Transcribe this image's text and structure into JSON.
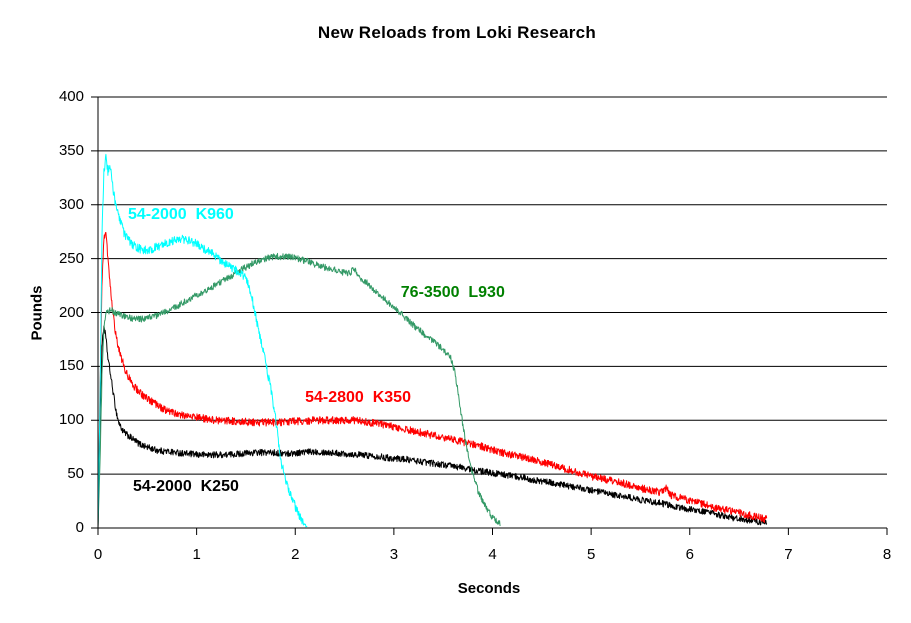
{
  "chart_data": {
    "type": "line",
    "title": "New Reloads from Loki Research",
    "xlabel": "Seconds",
    "ylabel": "Pounds",
    "xlim": [
      0,
      8
    ],
    "ylim": [
      0,
      400
    ],
    "xticks": [
      0,
      1,
      2,
      3,
      4,
      5,
      6,
      7,
      8
    ],
    "yticks": [
      0,
      50,
      100,
      150,
      200,
      250,
      300,
      350,
      400
    ],
    "grid": "horizontal",
    "background": "#ffffff",
    "axis_color": "#000000",
    "series": [
      {
        "name": "54-2000 K250",
        "label": "54-2000  K250",
        "color": "#000000",
        "label_color": "#000000",
        "noise_lbs": 3,
        "label_anchor": [
          0.355,
          46.4
        ],
        "peak_lbs": 188,
        "burn_time_s": 6.78,
        "points": [
          [
            0.0,
            0
          ],
          [
            0.02,
            100
          ],
          [
            0.04,
            168
          ],
          [
            0.06,
            188
          ],
          [
            0.08,
            176
          ],
          [
            0.1,
            158
          ],
          [
            0.12,
            147
          ],
          [
            0.15,
            128
          ],
          [
            0.18,
            110
          ],
          [
            0.21,
            98
          ],
          [
            0.25,
            90
          ],
          [
            0.3,
            86
          ],
          [
            0.36,
            82
          ],
          [
            0.42,
            78
          ],
          [
            0.5,
            75
          ],
          [
            0.6,
            72
          ],
          [
            0.7,
            71
          ],
          [
            0.8,
            70
          ],
          [
            0.9,
            69
          ],
          [
            1.0,
            68
          ],
          [
            1.15,
            68
          ],
          [
            1.3,
            68
          ],
          [
            1.45,
            69
          ],
          [
            1.6,
            70
          ],
          [
            1.75,
            70
          ],
          [
            1.9,
            69
          ],
          [
            2.05,
            70
          ],
          [
            2.2,
            71
          ],
          [
            2.35,
            70
          ],
          [
            2.5,
            69
          ],
          [
            2.65,
            68
          ],
          [
            2.8,
            67
          ],
          [
            2.95,
            65
          ],
          [
            3.1,
            64
          ],
          [
            3.25,
            62
          ],
          [
            3.4,
            60
          ],
          [
            3.55,
            58
          ],
          [
            3.7,
            56
          ],
          [
            3.85,
            53
          ],
          [
            4.0,
            51
          ],
          [
            4.15,
            49
          ],
          [
            4.3,
            47
          ],
          [
            4.45,
            44
          ],
          [
            4.6,
            42
          ],
          [
            4.75,
            39
          ],
          [
            4.9,
            37
          ],
          [
            5.05,
            34
          ],
          [
            5.2,
            31
          ],
          [
            5.35,
            29
          ],
          [
            5.5,
            26
          ],
          [
            5.65,
            24
          ],
          [
            5.8,
            21
          ],
          [
            5.95,
            18
          ],
          [
            6.1,
            16
          ],
          [
            6.25,
            13
          ],
          [
            6.4,
            10
          ],
          [
            6.55,
            8
          ],
          [
            6.68,
            6
          ],
          [
            6.78,
            5
          ]
        ]
      },
      {
        "name": "54-2800 K350",
        "label": "54-2800  K350",
        "color": "#FF0000",
        "label_color": "#FF0000",
        "noise_lbs": 3.5,
        "label_anchor": [
          2.1,
          129.0
        ],
        "peak_lbs": 272,
        "burn_time_s": 6.78,
        "points": [
          [
            0.0,
            0
          ],
          [
            0.02,
            130
          ],
          [
            0.04,
            225
          ],
          [
            0.06,
            268
          ],
          [
            0.08,
            272
          ],
          [
            0.1,
            252
          ],
          [
            0.12,
            230
          ],
          [
            0.14,
            210
          ],
          [
            0.17,
            186
          ],
          [
            0.2,
            170
          ],
          [
            0.23,
            160
          ],
          [
            0.27,
            148
          ],
          [
            0.31,
            140
          ],
          [
            0.36,
            132
          ],
          [
            0.42,
            126
          ],
          [
            0.48,
            121
          ],
          [
            0.55,
            117
          ],
          [
            0.63,
            112
          ],
          [
            0.72,
            108
          ],
          [
            0.8,
            106
          ],
          [
            0.86,
            105
          ],
          [
            0.96,
            103
          ],
          [
            1.06,
            102
          ],
          [
            1.2,
            100
          ],
          [
            1.4,
            99
          ],
          [
            1.6,
            98
          ],
          [
            1.8,
            98
          ],
          [
            2.0,
            99
          ],
          [
            2.2,
            100
          ],
          [
            2.4,
            100
          ],
          [
            2.6,
            100
          ],
          [
            2.75,
            98
          ],
          [
            2.9,
            96
          ],
          [
            3.05,
            93
          ],
          [
            3.2,
            90
          ],
          [
            3.35,
            87
          ],
          [
            3.5,
            84
          ],
          [
            3.65,
            81
          ],
          [
            3.8,
            78
          ],
          [
            3.95,
            74
          ],
          [
            4.1,
            70
          ],
          [
            4.25,
            67
          ],
          [
            4.4,
            64
          ],
          [
            4.55,
            60
          ],
          [
            4.7,
            56
          ],
          [
            4.85,
            52
          ],
          [
            5.0,
            48
          ],
          [
            5.15,
            45
          ],
          [
            5.3,
            42
          ],
          [
            5.45,
            38
          ],
          [
            5.6,
            35
          ],
          [
            5.72,
            33
          ],
          [
            5.76,
            37
          ],
          [
            5.8,
            31
          ],
          [
            5.95,
            27
          ],
          [
            6.1,
            23
          ],
          [
            6.25,
            19
          ],
          [
            6.4,
            16
          ],
          [
            6.55,
            13
          ],
          [
            6.68,
            10
          ],
          [
            6.78,
            8
          ]
        ]
      },
      {
        "name": "76-3500 L930",
        "label": "76-3500  L930",
        "color": "#339966",
        "label_color": "#008000",
        "noise_lbs": 3,
        "label_anchor": [
          3.07,
          226.4
        ],
        "peak_lbs": 253,
        "burn_time_s": 4.08,
        "points": [
          [
            0.0,
            0
          ],
          [
            0.02,
            60
          ],
          [
            0.04,
            140
          ],
          [
            0.06,
            185
          ],
          [
            0.08,
            198
          ],
          [
            0.1,
            201
          ],
          [
            0.14,
            202
          ],
          [
            0.18,
            199
          ],
          [
            0.24,
            197
          ],
          [
            0.3,
            195
          ],
          [
            0.38,
            194
          ],
          [
            0.46,
            194
          ],
          [
            0.54,
            196
          ],
          [
            0.62,
            198
          ],
          [
            0.7,
            201
          ],
          [
            0.78,
            205
          ],
          [
            0.86,
            209
          ],
          [
            0.94,
            213
          ],
          [
            1.02,
            217
          ],
          [
            1.1,
            221
          ],
          [
            1.18,
            225
          ],
          [
            1.26,
            229
          ],
          [
            1.34,
            233
          ],
          [
            1.42,
            238
          ],
          [
            1.5,
            242
          ],
          [
            1.58,
            246
          ],
          [
            1.66,
            249
          ],
          [
            1.74,
            251
          ],
          [
            1.82,
            252
          ],
          [
            1.9,
            252
          ],
          [
            1.98,
            251
          ],
          [
            2.06,
            249
          ],
          [
            2.14,
            247
          ],
          [
            2.22,
            244
          ],
          [
            2.3,
            242
          ],
          [
            2.38,
            240
          ],
          [
            2.46,
            238
          ],
          [
            2.54,
            236
          ],
          [
            2.6,
            240
          ],
          [
            2.64,
            233
          ],
          [
            2.72,
            228
          ],
          [
            2.8,
            221
          ],
          [
            2.88,
            214
          ],
          [
            2.96,
            208
          ],
          [
            3.04,
            201
          ],
          [
            3.12,
            195
          ],
          [
            3.2,
            188
          ],
          [
            3.28,
            182
          ],
          [
            3.36,
            176
          ],
          [
            3.44,
            170
          ],
          [
            3.52,
            164
          ],
          [
            3.58,
            157
          ],
          [
            3.62,
            144
          ],
          [
            3.66,
            120
          ],
          [
            3.7,
            95
          ],
          [
            3.74,
            74
          ],
          [
            3.78,
            57
          ],
          [
            3.82,
            44
          ],
          [
            3.86,
            33
          ],
          [
            3.9,
            25
          ],
          [
            3.95,
            17
          ],
          [
            4.0,
            10
          ],
          [
            4.05,
            6
          ],
          [
            4.08,
            4
          ]
        ]
      },
      {
        "name": "54-2000 K960",
        "label": "54-2000  K960",
        "color": "#00FFFF",
        "label_color": "#00FFFF",
        "noise_lbs": 4,
        "label_anchor": [
          0.304,
          298.8
        ],
        "peak_lbs": 343,
        "burn_time_s": 2.12,
        "points": [
          [
            0.0,
            0
          ],
          [
            0.02,
            120
          ],
          [
            0.04,
            270
          ],
          [
            0.06,
            330
          ],
          [
            0.08,
            343
          ],
          [
            0.1,
            331
          ],
          [
            0.12,
            338
          ],
          [
            0.15,
            316
          ],
          [
            0.18,
            300
          ],
          [
            0.22,
            286
          ],
          [
            0.26,
            275
          ],
          [
            0.3,
            268
          ],
          [
            0.35,
            263
          ],
          [
            0.4,
            260
          ],
          [
            0.45,
            258
          ],
          [
            0.5,
            258
          ],
          [
            0.55,
            259
          ],
          [
            0.6,
            261
          ],
          [
            0.65,
            263
          ],
          [
            0.7,
            265
          ],
          [
            0.75,
            266
          ],
          [
            0.8,
            267
          ],
          [
            0.85,
            268
          ],
          [
            0.9,
            268
          ],
          [
            0.95,
            266
          ],
          [
            1.0,
            264
          ],
          [
            1.05,
            261
          ],
          [
            1.1,
            258
          ],
          [
            1.15,
            255
          ],
          [
            1.2,
            251
          ],
          [
            1.25,
            248
          ],
          [
            1.3,
            245
          ],
          [
            1.35,
            242
          ],
          [
            1.4,
            239
          ],
          [
            1.45,
            236
          ],
          [
            1.5,
            232
          ],
          [
            1.55,
            219
          ],
          [
            1.6,
            196
          ],
          [
            1.65,
            175
          ],
          [
            1.7,
            153
          ],
          [
            1.75,
            130
          ],
          [
            1.8,
            102
          ],
          [
            1.85,
            64
          ],
          [
            1.9,
            46
          ],
          [
            1.95,
            31
          ],
          [
            2.0,
            20
          ],
          [
            2.05,
            10
          ],
          [
            2.1,
            3
          ],
          [
            2.12,
            1
          ]
        ]
      }
    ]
  }
}
